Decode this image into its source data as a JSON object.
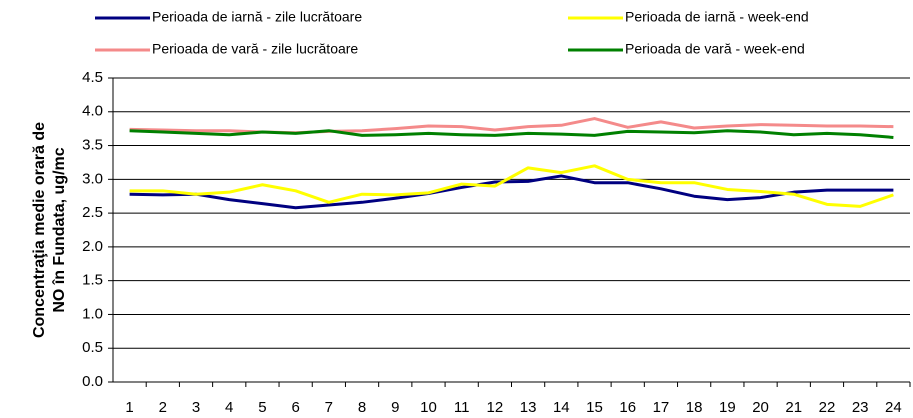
{
  "chart_data": {
    "type": "line",
    "y_label": [
      "Concentraţia medie orară de",
      "NO în Fundata, ug/mc"
    ],
    "categories": [
      "1",
      "2",
      "3",
      "4",
      "5",
      "6",
      "7",
      "8",
      "9",
      "10",
      "11",
      "12",
      "13",
      "14",
      "15",
      "16",
      "17",
      "18",
      "19",
      "20",
      "21",
      "22",
      "23",
      "24"
    ],
    "series": [
      {
        "name": "Perioada de iarnă - zile lucrătoare",
        "color": "#000080",
        "values": [
          2.78,
          2.77,
          2.78,
          2.7,
          2.64,
          2.58,
          2.62,
          2.66,
          2.72,
          2.79,
          2.88,
          2.96,
          2.97,
          3.05,
          2.95,
          2.95,
          2.86,
          2.75,
          2.7,
          2.73,
          2.81,
          2.84,
          2.84,
          2.84
        ]
      },
      {
        "name": "Perioada de iarnă - week-end",
        "color": "#ffff00",
        "values": [
          2.83,
          2.83,
          2.78,
          2.81,
          2.92,
          2.83,
          2.66,
          2.78,
          2.77,
          2.8,
          2.93,
          2.9,
          3.17,
          3.1,
          3.2,
          3.0,
          2.95,
          2.95,
          2.85,
          2.82,
          2.78,
          2.63,
          2.6,
          2.77
        ]
      },
      {
        "name": "Perioada de vară - zile lucrătoare",
        "color": "#f48a8a",
        "values": [
          3.74,
          3.73,
          3.72,
          3.72,
          3.7,
          3.69,
          3.71,
          3.72,
          3.75,
          3.79,
          3.78,
          3.73,
          3.78,
          3.8,
          3.9,
          3.77,
          3.85,
          3.76,
          3.79,
          3.81,
          3.8,
          3.79,
          3.79,
          3.78
        ]
      },
      {
        "name": "Perioada de vară - week-end",
        "color": "#008000",
        "values": [
          3.72,
          3.7,
          3.68,
          3.66,
          3.7,
          3.68,
          3.72,
          3.65,
          3.66,
          3.68,
          3.66,
          3.65,
          3.68,
          3.67,
          3.65,
          3.71,
          3.7,
          3.69,
          3.72,
          3.7,
          3.66,
          3.68,
          3.66,
          3.62
        ]
      }
    ],
    "ylim": [
      0,
      4.5
    ],
    "yticks": [
      {
        "value": 0,
        "label": "0.0"
      },
      0.5,
      {
        "value": 1,
        "label": "1.0"
      },
      1.5,
      {
        "value": 2,
        "label": "2.0"
      },
      2.5,
      {
        "value": 3,
        "label": "3.0"
      },
      3.5,
      {
        "value": 4,
        "label": "4.0"
      },
      4.5
    ],
    "grid": true
  }
}
